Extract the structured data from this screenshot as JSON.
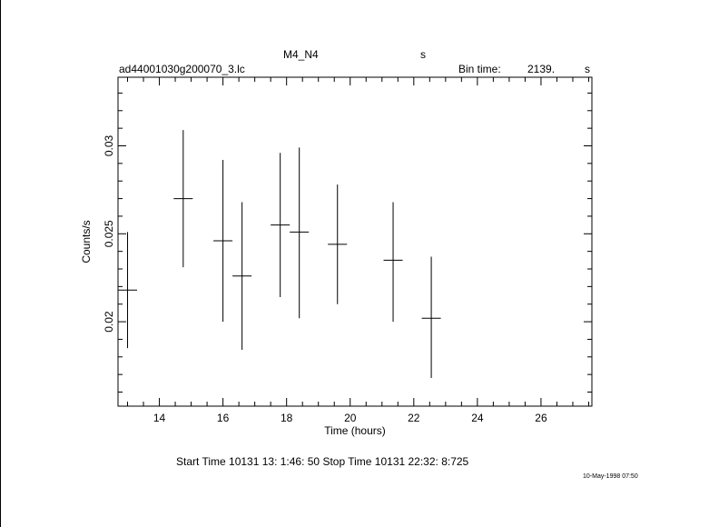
{
  "header": {
    "object": "M4_N4",
    "object_unit": "s",
    "filename": "ad44001030g200070_3.lc",
    "bin_time_label": "Bin time:",
    "bin_time_value": "2139.",
    "bin_time_unit": "s"
  },
  "footer": {
    "start_stop": "Start Time 10131 13: 1:46: 50    Stop Time 10131 22:32: 8:725",
    "date_stamp": "10-May-1998 07:50"
  },
  "chart_data": {
    "type": "scatter",
    "xlabel": "Time (hours)",
    "ylabel": "Counts/s",
    "xlim": [
      12.7,
      27.6
    ],
    "ylim": [
      0.0152,
      0.0339
    ],
    "xticks": [
      14,
      16,
      18,
      20,
      22,
      24,
      26
    ],
    "xtick_labels": [
      "14",
      "16",
      "18",
      "20",
      "22",
      "24",
      "26"
    ],
    "yticks": [
      0.02,
      0.025,
      0.03
    ],
    "ytick_labels": [
      "0.02",
      "0.025",
      "0.03"
    ],
    "grid": false,
    "points": [
      {
        "x": 13.0,
        "xerr": 0.3,
        "y": 0.0218,
        "ylo": 0.0185,
        "yhi": 0.0251
      },
      {
        "x": 14.75,
        "xerr": 0.3,
        "y": 0.027,
        "ylo": 0.0231,
        "yhi": 0.0309
      },
      {
        "x": 16.0,
        "xerr": 0.3,
        "y": 0.0246,
        "ylo": 0.02,
        "yhi": 0.0292
      },
      {
        "x": 16.6,
        "xerr": 0.3,
        "y": 0.0226,
        "ylo": 0.0184,
        "yhi": 0.0268
      },
      {
        "x": 17.8,
        "xerr": 0.3,
        "y": 0.0255,
        "ylo": 0.0214,
        "yhi": 0.0296
      },
      {
        "x": 18.4,
        "xerr": 0.3,
        "y": 0.0251,
        "ylo": 0.0202,
        "yhi": 0.0299
      },
      {
        "x": 19.6,
        "xerr": 0.3,
        "y": 0.0244,
        "ylo": 0.021,
        "yhi": 0.0278
      },
      {
        "x": 21.35,
        "xerr": 0.3,
        "y": 0.0235,
        "ylo": 0.02,
        "yhi": 0.0268
      },
      {
        "x": 22.55,
        "xerr": 0.3,
        "y": 0.0202,
        "ylo": 0.0168,
        "yhi": 0.0237
      }
    ]
  }
}
